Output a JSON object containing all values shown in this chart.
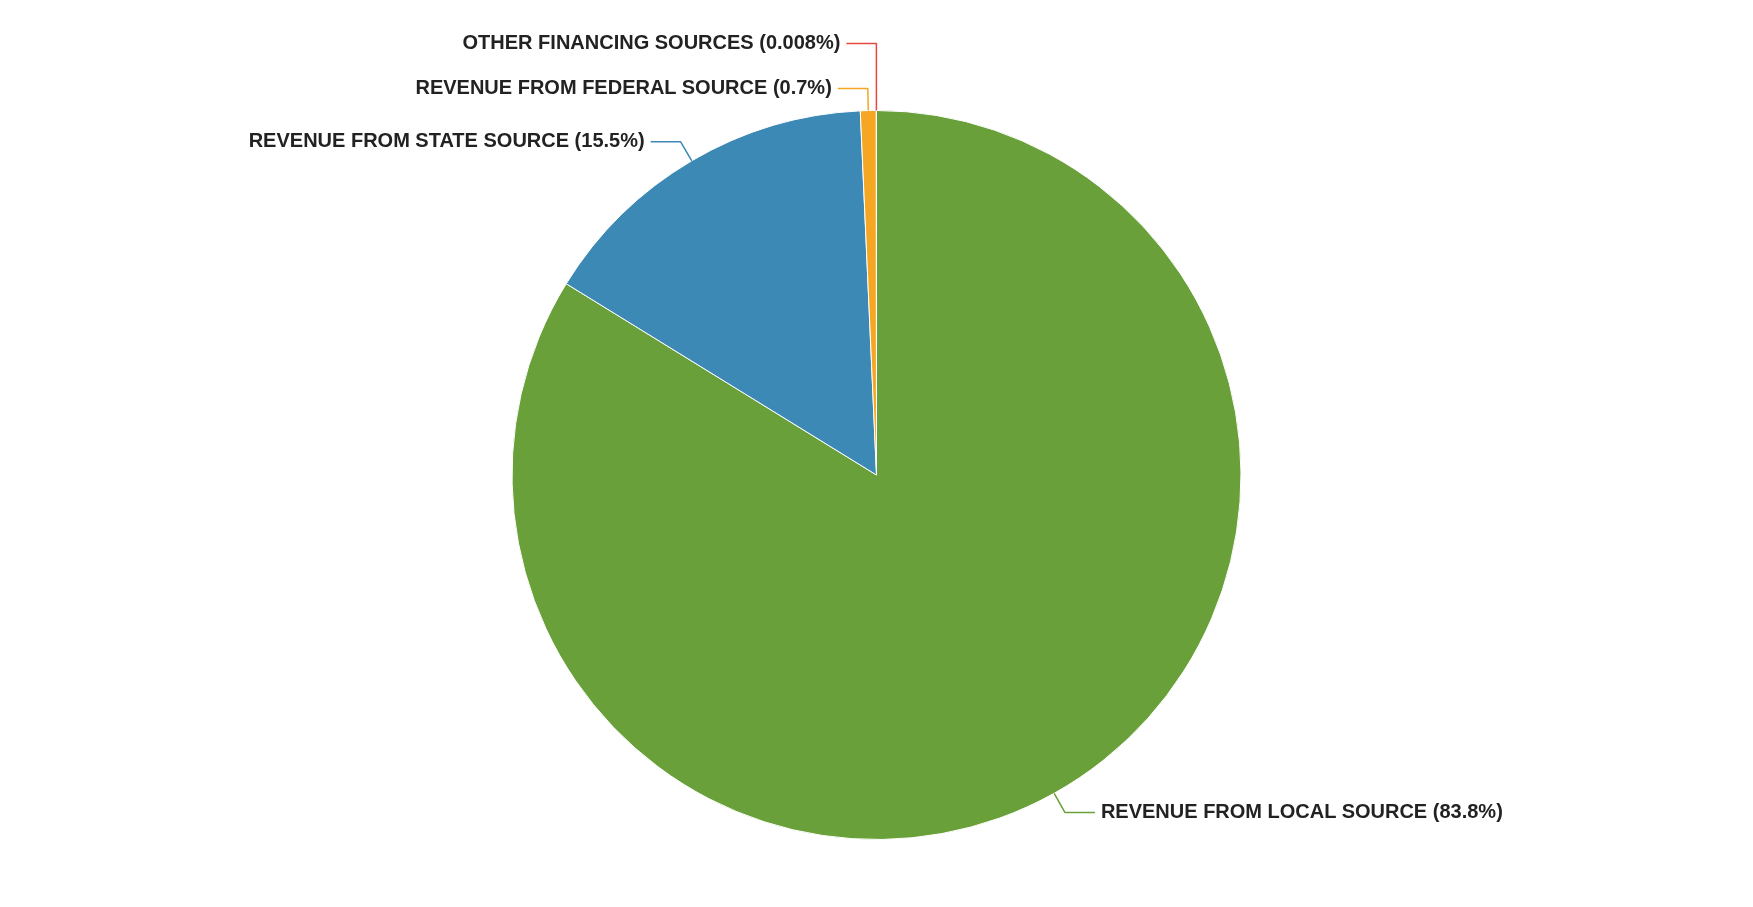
{
  "chart_data": {
    "type": "pie",
    "categories": [
      "REVENUE FROM LOCAL SOURCE",
      "REVENUE FROM STATE SOURCE",
      "REVENUE FROM FEDERAL SOURCE",
      "OTHER FINANCING SOURCES"
    ],
    "values": [
      83.8,
      15.5,
      0.7,
      0.008
    ],
    "value_labels": [
      "(83.8%)",
      "(15.5%)",
      "(0.7%)",
      "(0.008%)"
    ],
    "colors": [
      "#6aa03a",
      "#3c89b5",
      "#f5a623",
      "#e8473f"
    ],
    "legend": false
  }
}
